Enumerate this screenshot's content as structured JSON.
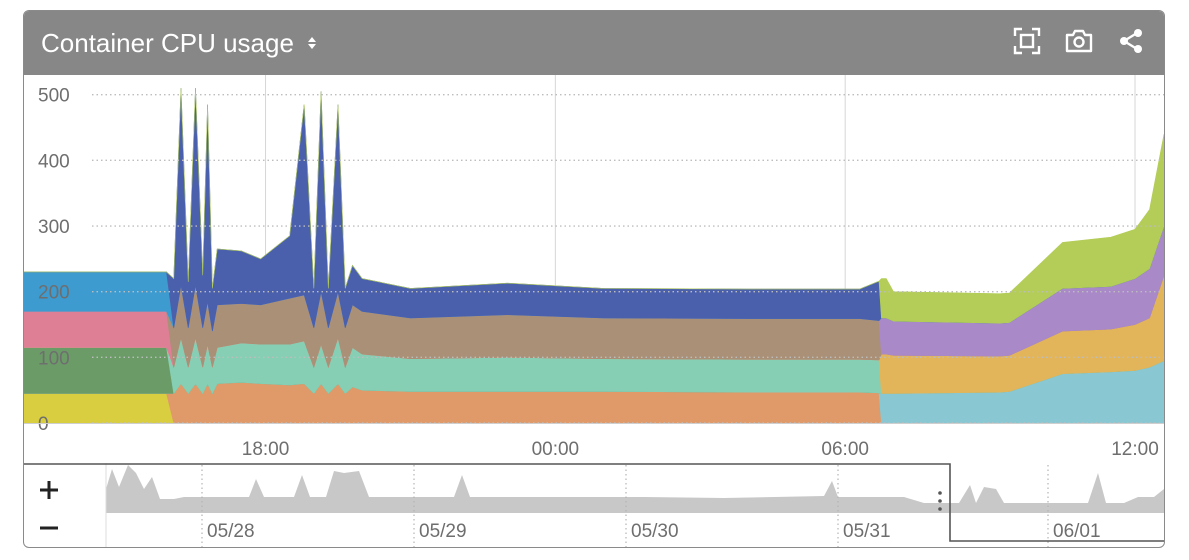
{
  "header": {
    "title": "Container CPU usage",
    "icons": [
      "sort-icon",
      "fullscreen-icon",
      "camera-icon",
      "share-icon"
    ]
  },
  "navigator": {
    "zoom_in_label": "+",
    "zoom_out_label": "−",
    "date_labels": [
      "05/28",
      "05/29",
      "05/30",
      "05/31",
      "06/01"
    ],
    "selection_range": [
      "05/31 ~13:30",
      "06/01 ~14:00"
    ]
  },
  "chart_data": {
    "type": "area",
    "stacked": true,
    "title": "",
    "xlabel": "",
    "ylabel": "",
    "ylim": [
      0,
      530
    ],
    "xlim_hours": [
      13.0,
      36.6
    ],
    "yticks": [
      0,
      100,
      200,
      300,
      400,
      500
    ],
    "xticks": [
      {
        "hour": 18,
        "label": "18:00"
      },
      {
        "hour": 24,
        "label": "00:00"
      },
      {
        "hour": 30,
        "label": "06:00"
      },
      {
        "hour": 36,
        "label": "12:00"
      }
    ],
    "grid": true,
    "legend": "none",
    "x": [
      13.0,
      15.8,
      15.95,
      16.1,
      16.25,
      16.4,
      16.55,
      16.7,
      16.8,
      16.9,
      17.0,
      17.5,
      17.9,
      18.5,
      18.8,
      19.0,
      19.15,
      19.3,
      19.5,
      19.65,
      19.8,
      20.0,
      21.0,
      23.0,
      25.0,
      28.0,
      30.3,
      30.7,
      30.75,
      30.85,
      31.0,
      33.2,
      33.4,
      34.5,
      35.5,
      36.0,
      36.3,
      36.6
    ],
    "series": [
      {
        "color": "#d8ce3f",
        "values": [
          45,
          45,
          45,
          0,
          0,
          0,
          0,
          0,
          0,
          0,
          0,
          0,
          0,
          0,
          0,
          0,
          0,
          0,
          0,
          0,
          0,
          0,
          0,
          0,
          0,
          0,
          0,
          0,
          0,
          0,
          0,
          0,
          0,
          0,
          0,
          0,
          0,
          0
        ]
      },
      {
        "color": "#e09a6a",
        "values": [
          0,
          0,
          0,
          45,
          60,
          45,
          60,
          45,
          60,
          45,
          60,
          62,
          60,
          58,
          60,
          45,
          60,
          45,
          60,
          45,
          55,
          50,
          48,
          48,
          48,
          47,
          47,
          46,
          0,
          0,
          0,
          0,
          0,
          0,
          0,
          0,
          0,
          0
        ]
      },
      {
        "color": "#89c8d2",
        "values": [
          0,
          0,
          0,
          0,
          0,
          0,
          0,
          0,
          0,
          0,
          0,
          0,
          0,
          0,
          0,
          0,
          0,
          0,
          0,
          0,
          0,
          0,
          0,
          0,
          0,
          0,
          0,
          0,
          45,
          45,
          45,
          47,
          48,
          75,
          78,
          80,
          85,
          95
        ]
      },
      {
        "color": "#6b9c68",
        "values": [
          70,
          70,
          70,
          0,
          0,
          0,
          0,
          0,
          0,
          0,
          0,
          0,
          0,
          0,
          0,
          0,
          0,
          0,
          0,
          0,
          0,
          0,
          0,
          0,
          0,
          0,
          0,
          0,
          0,
          0,
          0,
          0,
          0,
          0,
          0,
          0,
          0,
          0
        ]
      },
      {
        "color": "#86cfb4",
        "values": [
          0,
          0,
          0,
          40,
          70,
          40,
          70,
          40,
          60,
          40,
          55,
          60,
          60,
          62,
          65,
          40,
          60,
          40,
          70,
          40,
          60,
          55,
          50,
          52,
          50,
          50,
          50,
          50,
          0,
          0,
          0,
          0,
          0,
          0,
          0,
          0,
          0,
          0
        ]
      },
      {
        "color": "#e2b55a",
        "values": [
          0,
          0,
          0,
          0,
          0,
          0,
          0,
          0,
          0,
          0,
          0,
          0,
          0,
          0,
          0,
          0,
          0,
          0,
          0,
          0,
          0,
          0,
          0,
          0,
          0,
          0,
          0,
          0,
          60,
          60,
          58,
          55,
          55,
          65,
          65,
          70,
          75,
          130
        ]
      },
      {
        "color": "#df7f96",
        "values": [
          55,
          55,
          55,
          0,
          0,
          0,
          0,
          0,
          0,
          0,
          0,
          0,
          0,
          0,
          0,
          0,
          0,
          0,
          0,
          0,
          0,
          0,
          0,
          0,
          0,
          0,
          0,
          0,
          0,
          0,
          0,
          0,
          0,
          0,
          0,
          0,
          0,
          0
        ]
      },
      {
        "color": "#a99077",
        "values": [
          0,
          0,
          0,
          60,
          80,
          60,
          80,
          60,
          65,
          55,
          65,
          60,
          60,
          70,
          70,
          60,
          80,
          60,
          70,
          60,
          65,
          65,
          62,
          65,
          62,
          62,
          62,
          60,
          0,
          0,
          0,
          0,
          0,
          0,
          0,
          0,
          0,
          0
        ]
      },
      {
        "color": "#a989c8",
        "values": [
          0,
          0,
          0,
          0,
          0,
          0,
          0,
          0,
          0,
          0,
          0,
          0,
          0,
          0,
          0,
          0,
          0,
          0,
          0,
          0,
          0,
          0,
          0,
          0,
          0,
          0,
          0,
          0,
          55,
          55,
          52,
          50,
          50,
          65,
          65,
          70,
          75,
          75
        ]
      },
      {
        "color": "#3d9bd0",
        "values": [
          60,
          60,
          60,
          0,
          0,
          0,
          0,
          0,
          0,
          0,
          0,
          0,
          0,
          0,
          0,
          0,
          0,
          0,
          0,
          0,
          0,
          0,
          0,
          0,
          0,
          0,
          0,
          0,
          0,
          0,
          0,
          0,
          0,
          0,
          0,
          0,
          0,
          0
        ]
      },
      {
        "color": "#4a60ad",
        "values": [
          0,
          0,
          0,
          75,
          300,
          70,
          300,
          80,
          300,
          65,
          85,
          80,
          70,
          95,
          290,
          60,
          305,
          60,
          285,
          60,
          60,
          50,
          45,
          48,
          45,
          45,
          45,
          60,
          0,
          0,
          0,
          0,
          0,
          0,
          0,
          0,
          0,
          0
        ]
      },
      {
        "color": "#b3cd58",
        "values": [
          0,
          0,
          0,
          0,
          0,
          0,
          0,
          0,
          0,
          0,
          0,
          0,
          0,
          0,
          0,
          0,
          0,
          0,
          0,
          0,
          0,
          0,
          0,
          0,
          0,
          0,
          0,
          0,
          60,
          60,
          45,
          45,
          45,
          70,
          75,
          75,
          90,
          140
        ]
      }
    ]
  }
}
